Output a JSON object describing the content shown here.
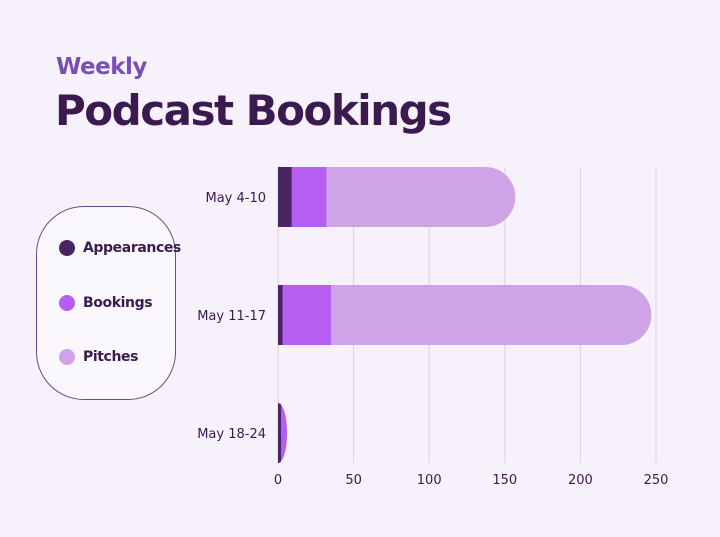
{
  "header": {
    "subtitle": "Weekly",
    "title": "Podcast Bookings"
  },
  "legend": {
    "items": [
      {
        "label": "Appearances",
        "color": "#4a2563"
      },
      {
        "label": "Bookings",
        "color": "#b45ef2"
      },
      {
        "label": "Pitches",
        "color": "#cfa3e8"
      }
    ]
  },
  "chart_data": {
    "type": "bar",
    "orientation": "horizontal",
    "stacked": true,
    "title": "Podcast Bookings",
    "subtitle": "Weekly",
    "categories": [
      "May 4-10",
      "May 11-17",
      "May 18-24"
    ],
    "series": [
      {
        "name": "Appearances",
        "color": "#4a2563",
        "values": [
          9,
          3,
          2
        ]
      },
      {
        "name": "Bookings",
        "color": "#b45ef2",
        "values": [
          23,
          32,
          4
        ]
      },
      {
        "name": "Pitches",
        "color": "#cfa3e8",
        "values": [
          125,
          212,
          0
        ]
      }
    ],
    "xlim": [
      0,
      250
    ],
    "xticks": [
      0,
      50,
      100,
      150,
      200,
      250
    ],
    "xlabel": "",
    "ylabel": "",
    "grid": true,
    "legend_position": "left"
  }
}
